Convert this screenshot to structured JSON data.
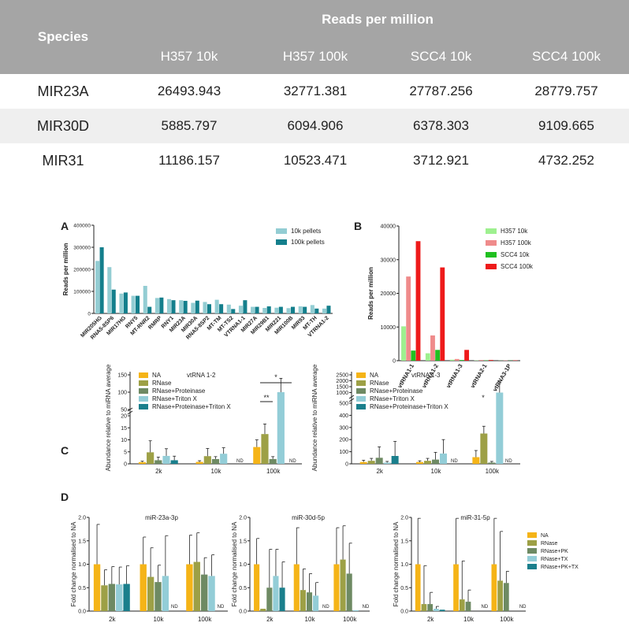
{
  "table": {
    "species_header": "Species",
    "rpm_header": "Reads per million",
    "columns": [
      "H357 10k",
      "H357 100k",
      "SCC4 10k",
      "SCC4 100k"
    ],
    "rows": [
      {
        "gene": "MIR23A",
        "values": [
          "26493.943",
          "32771.381",
          "27787.256",
          "28779.757"
        ]
      },
      {
        "gene": "MIR30D",
        "values": [
          "5885.797",
          "6094.906",
          "6378.303",
          "9109.665"
        ]
      },
      {
        "gene": "MIR31",
        "values": [
          "11186.157",
          "10523.471",
          "3712.921",
          "4732.252"
        ]
      }
    ]
  },
  "panel_labels": [
    "A",
    "B",
    "C",
    "D"
  ],
  "colors": {
    "pellet10k": "#93cdd3",
    "pellet100k": "#147f8c",
    "h357_10k": "#9ef08f",
    "h357_100k": "#ef8b8b",
    "scc4_10k": "#20c020",
    "scc4_100k": "#ee1a1a",
    "na": "#f5b417",
    "rnase": "#9da046",
    "rnase_pk": "#6e8a63",
    "rnase_tx": "#93cdd7",
    "rnase_pk_tx": "#1a7f8c",
    "header_bg": "#a5a5a5",
    "alt_row": "#efefef"
  },
  "chart_data": [
    {
      "id": "A",
      "type": "bar",
      "ylabel": "Reads per million",
      "ylim": [
        0,
        400000
      ],
      "yticks": [
        "0",
        "100000",
        "200000",
        "300000",
        "400000"
      ],
      "categories": [
        "MIR205HG",
        "RNA5-8SP6",
        "MIR17HG",
        "RNY5",
        "MT-RNR2",
        "RMRP",
        "RNY1",
        "MIR23A",
        "MIR30A",
        "RNA5-8SP2",
        "MT-TM",
        "MT-TS2",
        "VTRNA1-1",
        "MIR27A",
        "MIR29B1",
        "MIR221",
        "MIR100B",
        "MIR93",
        "MT-TH",
        "VTRNA1-2"
      ],
      "series": [
        {
          "name": "10k pellets",
          "values": [
            238000,
            210000,
            90000,
            80000,
            125000,
            70000,
            65000,
            60000,
            48000,
            52000,
            62000,
            40000,
            35000,
            30000,
            25000,
            26000,
            24000,
            32000,
            38000,
            22000
          ]
        },
        {
          "name": "100k pellets",
          "values": [
            300000,
            108000,
            95000,
            80000,
            30000,
            72000,
            60000,
            57000,
            58000,
            42000,
            42000,
            20000,
            60000,
            30000,
            32000,
            30000,
            30000,
            30000,
            22000,
            35000
          ]
        }
      ],
      "legend": "top-right"
    },
    {
      "id": "B",
      "type": "bar",
      "ylabel": "Reads per million",
      "ylim": [
        0,
        40000
      ],
      "yticks": [
        "0",
        "10000",
        "20000",
        "30000",
        "40000"
      ],
      "categories": [
        "vtRNA1-1",
        "vtRNA1-2",
        "vtRNA1-3",
        "vtRNA2-1",
        "vtRNA3-1P"
      ],
      "series": [
        {
          "name": "H357 10k",
          "values": [
            10200,
            2200,
            300,
            100,
            50
          ]
        },
        {
          "name": "H357 100k",
          "values": [
            25000,
            7500,
            500,
            200,
            100
          ]
        },
        {
          "name": "SCC4 10k",
          "values": [
            3000,
            3200,
            200,
            100,
            50
          ]
        },
        {
          "name": "SCC4 100k",
          "values": [
            35500,
            27700,
            3200,
            200,
            100
          ]
        }
      ],
      "legend": "top-right"
    },
    {
      "id": "C1",
      "type": "bar",
      "title": "vtRNA 1-2",
      "ylabel": "Abundance relative to miRNA average",
      "yticks": [
        "0",
        "5",
        "10",
        "15",
        "20",
        "50",
        "100",
        "150"
      ],
      "categories": [
        "2k",
        "10k",
        "100k"
      ],
      "series": [
        {
          "name": "NA",
          "values": [
            0.7,
            0.8,
            7.0
          ],
          "errors": [
            0.4,
            0.5,
            3.0
          ]
        },
        {
          "name": "RNase",
          "values": [
            4.8,
            3.2,
            12.4
          ],
          "errors": [
            4.8,
            3.2,
            4.2
          ]
        },
        {
          "name": "RNase+Proteinase",
          "values": [
            1.5,
            2.0,
            2.0
          ],
          "errors": [
            1.3,
            1.0,
            1.0
          ]
        },
        {
          "name": "RNase+Triton X",
          "values": [
            3.3,
            4.2,
            100
          ],
          "errors": [
            3.0,
            2.5,
            40
          ]
        },
        {
          "name": "RNase+Proteinase+Triton X",
          "values": [
            1.5,
            0,
            0
          ],
          "errors": [
            1.7,
            0,
            0
          ]
        }
      ],
      "annotations": [
        "*",
        "**",
        "ND",
        "ND"
      ]
    },
    {
      "id": "C2",
      "type": "bar",
      "title": "vtRNA 1-3",
      "ylabel": "Abundance relative to miRNA average",
      "yticks": [
        "0",
        "100",
        "200",
        "300",
        "400",
        "500",
        "1000",
        "1500",
        "2000",
        "2500"
      ],
      "categories": [
        "2k",
        "10k",
        "100k"
      ],
      "series": [
        {
          "name": "NA",
          "values": [
            15,
            15,
            55
          ],
          "errors": [
            15,
            10,
            55
          ]
        },
        {
          "name": "RNase",
          "values": [
            25,
            25,
            250
          ],
          "errors": [
            20,
            20,
            60
          ]
        },
        {
          "name": "RNase+Proteinase",
          "values": [
            50,
            35,
            10
          ],
          "errors": [
            90,
            60,
            10
          ]
        },
        {
          "name": "RNase+Triton X",
          "values": [
            10,
            85,
            1000
          ],
          "errors": [
            10,
            115,
            900
          ]
        },
        {
          "name": "RNase+Proteinase+Triton X",
          "values": [
            65,
            0,
            0
          ],
          "errors": [
            120,
            0,
            0
          ]
        }
      ],
      "annotations": [
        "*",
        "ND",
        "ND"
      ]
    },
    {
      "id": "D1",
      "type": "bar",
      "title": "miR-23a-3p",
      "ylabel": "Fold change normalised to NA",
      "ylim": [
        0,
        2.0
      ],
      "yticks": [
        "0.0",
        "0.5",
        "1.0",
        "1.5",
        "2.0"
      ],
      "categories": [
        "2k",
        "10k",
        "100k"
      ],
      "series": [
        {
          "name": "NA",
          "values": [
            1.0,
            1.0,
            1.0
          ],
          "errors": [
            0.85,
            0.58,
            0.62
          ]
        },
        {
          "name": "RNase",
          "values": [
            0.55,
            0.73,
            1.05
          ],
          "errors": [
            0.33,
            0.62,
            0.62
          ]
        },
        {
          "name": "RNase+PK",
          "values": [
            0.58,
            0.62,
            0.78
          ],
          "errors": [
            0.37,
            0.36,
            0.36
          ]
        },
        {
          "name": "RNase+TX",
          "values": [
            0.57,
            0.75,
            0.75
          ],
          "errors": [
            0.37,
            0.86,
            0.45
          ]
        },
        {
          "name": "RNase+PK+TX",
          "values": [
            0.58,
            0,
            0
          ],
          "errors": [
            0.39,
            0,
            0
          ]
        }
      ],
      "annotations": [
        "ND",
        "ND"
      ]
    },
    {
      "id": "D2",
      "type": "bar",
      "title": "miR-30d-5p",
      "ylabel": "Fold change normalised to NA",
      "ylim": [
        0,
        2.0
      ],
      "yticks": [
        "0.0",
        "0.5",
        "1.0",
        "1.5",
        "2.0"
      ],
      "categories": [
        "2k",
        "10k",
        "100k"
      ],
      "series": [
        {
          "name": "NA",
          "values": [
            1.0,
            1.0,
            1.0
          ],
          "errors": [
            0.55,
            0.78,
            0.78
          ]
        },
        {
          "name": "RNase",
          "values": [
            0.05,
            0.45,
            1.1
          ],
          "errors": [
            0,
            0.45,
            0.72
          ]
        },
        {
          "name": "RNase+PK",
          "values": [
            0.5,
            0.4,
            0.8
          ],
          "errors": [
            0.82,
            0.4,
            0.65
          ]
        },
        {
          "name": "RNase+TX",
          "values": [
            0.75,
            0.33,
            0.02
          ],
          "errors": [
            0.57,
            0.28,
            0
          ]
        },
        {
          "name": "RNase+PK+TX",
          "values": [
            0.5,
            0,
            0
          ],
          "errors": [
            0.55,
            0,
            0
          ]
        }
      ],
      "annotations": [
        "ND",
        "ND"
      ]
    },
    {
      "id": "D3",
      "type": "bar",
      "title": "miR-31-5p",
      "ylabel": "Fold change normalised to NA",
      "ylim": [
        0,
        2.0
      ],
      "yticks": [
        "0.0",
        "0.5",
        "1.0",
        "1.5",
        "2.0"
      ],
      "categories": [
        "2k",
        "10k",
        "100k"
      ],
      "series": [
        {
          "name": "NA",
          "values": [
            1.0,
            1.0,
            1.0
          ],
          "errors": [
            0.98,
            0.98,
            0.98
          ]
        },
        {
          "name": "RNase",
          "values": [
            0.15,
            0.25,
            0.65
          ],
          "errors": [
            0.82,
            0.82,
            1.05
          ]
        },
        {
          "name": "RNase+PK",
          "values": [
            0.15,
            0.2,
            0.6
          ],
          "errors": [
            0.25,
            0.25,
            0.25
          ]
        },
        {
          "name": "RNase+TX",
          "values": [
            0.05,
            0,
            0
          ],
          "errors": [
            0.05,
            0,
            0
          ]
        },
        {
          "name": "RNase+PK+TX",
          "values": [
            0.03,
            0,
            0
          ],
          "errors": [
            0,
            0,
            0
          ]
        }
      ],
      "annotations": [
        "ND",
        "ND"
      ]
    }
  ]
}
